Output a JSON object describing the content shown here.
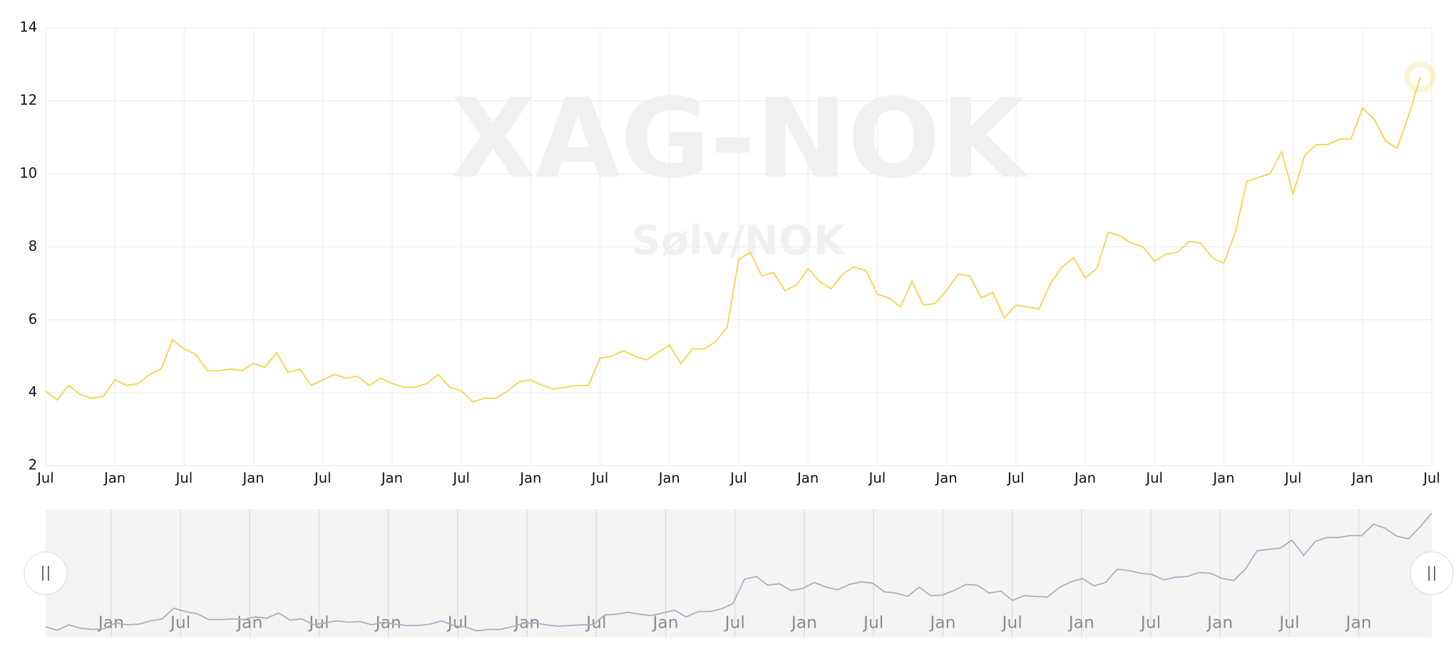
{
  "chart_data": {
    "type": "line",
    "watermark_title": "XAG-NOK",
    "watermark_subtitle": "Sølv/NOK",
    "x": [
      0,
      1,
      2,
      3,
      4,
      5,
      6,
      7,
      8,
      9,
      10,
      11,
      12,
      13,
      14,
      15,
      16,
      17,
      18,
      19,
      20,
      21,
      22,
      23,
      24,
      25,
      26,
      27,
      28,
      29,
      30,
      31,
      32,
      33,
      34,
      35,
      36,
      37,
      38,
      39,
      40,
      41,
      42,
      43,
      44,
      45,
      46,
      47,
      48,
      49,
      50,
      51,
      52,
      53,
      54,
      55,
      56,
      57,
      58,
      59,
      60,
      61,
      62,
      63,
      64,
      65,
      66,
      67,
      68,
      69,
      70,
      71,
      72,
      73,
      74,
      75,
      76,
      77,
      78,
      79,
      80,
      81,
      82,
      83,
      84,
      85,
      86,
      87,
      88,
      89,
      90,
      91,
      92,
      93,
      94,
      95,
      96,
      97,
      98,
      99,
      100,
      101,
      102,
      103,
      104,
      105,
      106,
      107,
      108,
      109,
      110,
      111,
      112,
      113,
      114,
      115,
      116,
      117,
      118,
      119
    ],
    "series": [
      {
        "name": "XAG-NOK",
        "color": "#f9d24c",
        "values": [
          4.05,
          3.8,
          4.2,
          3.95,
          3.85,
          3.9,
          4.35,
          4.2,
          4.25,
          4.5,
          4.65,
          5.45,
          5.2,
          5.05,
          4.6,
          4.6,
          4.65,
          4.6,
          4.8,
          4.7,
          5.1,
          4.55,
          4.65,
          4.2,
          4.35,
          4.5,
          4.4,
          4.45,
          4.2,
          4.4,
          4.25,
          4.15,
          4.15,
          4.25,
          4.5,
          4.15,
          4.05,
          3.75,
          3.85,
          3.85,
          4.05,
          4.3,
          4.35,
          4.2,
          4.1,
          4.15,
          4.2,
          4.2,
          4.95,
          5.0,
          5.15,
          5.0,
          4.9,
          5.1,
          5.3,
          4.8,
          5.2,
          5.2,
          5.4,
          5.8,
          7.65,
          7.85,
          7.2,
          7.3,
          6.8,
          6.95,
          7.4,
          7.05,
          6.85,
          7.25,
          7.45,
          7.35,
          6.7,
          6.6,
          6.35,
          7.05,
          6.4,
          6.45,
          6.8,
          7.25,
          7.2,
          6.6,
          6.75,
          6.05,
          6.4,
          6.35,
          6.3,
          7.0,
          7.45,
          7.7,
          7.15,
          7.4,
          8.4,
          8.3,
          8.1,
          8.0,
          7.6,
          7.8,
          7.85,
          8.15,
          8.1,
          7.7,
          7.55,
          8.4,
          9.8,
          9.9,
          10.0,
          10.6,
          9.45,
          10.5,
          10.8,
          10.8,
          10.95,
          10.95,
          11.8,
          11.5,
          10.9,
          10.7,
          11.6,
          12.65
        ]
      }
    ],
    "xlim": [
      0,
      120
    ],
    "xticks": [
      {
        "value": 0,
        "label": "Jul"
      },
      {
        "value": 6,
        "label": "Jan"
      },
      {
        "value": 12,
        "label": "Jul"
      },
      {
        "value": 18,
        "label": "Jan"
      },
      {
        "value": 24,
        "label": "Jul"
      },
      {
        "value": 30,
        "label": "Jan"
      },
      {
        "value": 36,
        "label": "Jul"
      },
      {
        "value": 42,
        "label": "Jan"
      },
      {
        "value": 48,
        "label": "Jul"
      },
      {
        "value": 54,
        "label": "Jan"
      },
      {
        "value": 60,
        "label": "Jul"
      },
      {
        "value": 66,
        "label": "Jan"
      },
      {
        "value": 72,
        "label": "Jul"
      },
      {
        "value": 78,
        "label": "Jan"
      },
      {
        "value": 84,
        "label": "Jul"
      },
      {
        "value": 90,
        "label": "Jan"
      },
      {
        "value": 96,
        "label": "Jul"
      },
      {
        "value": 102,
        "label": "Jan"
      },
      {
        "value": 108,
        "label": "Jul"
      },
      {
        "value": 114,
        "label": "Jan"
      },
      {
        "value": 120,
        "label": "Jul"
      }
    ],
    "ylim": [
      2,
      14
    ],
    "yticks": [
      2,
      4,
      6,
      8,
      10,
      12,
      14
    ],
    "grid": true,
    "navigator": {
      "color": "#aab0c4",
      "xticks": [
        {
          "value": 6,
          "label": "Jan"
        },
        {
          "value": 12,
          "label": "Jul"
        },
        {
          "value": 18,
          "label": "Jan"
        },
        {
          "value": 24,
          "label": "Jul"
        },
        {
          "value": 30,
          "label": "Jan"
        },
        {
          "value": 36,
          "label": "Jul"
        },
        {
          "value": 42,
          "label": "Jan"
        },
        {
          "value": 48,
          "label": "Jul"
        },
        {
          "value": 54,
          "label": "Jan"
        },
        {
          "value": 60,
          "label": "Jul"
        },
        {
          "value": 66,
          "label": "Jan"
        },
        {
          "value": 72,
          "label": "Jul"
        },
        {
          "value": 78,
          "label": "Jan"
        },
        {
          "value": 84,
          "label": "Jul"
        },
        {
          "value": 90,
          "label": "Jan"
        },
        {
          "value": 96,
          "label": "Jul"
        },
        {
          "value": 102,
          "label": "Jan"
        },
        {
          "value": 108,
          "label": "Jul"
        },
        {
          "value": 114,
          "label": "Jan"
        }
      ]
    }
  }
}
